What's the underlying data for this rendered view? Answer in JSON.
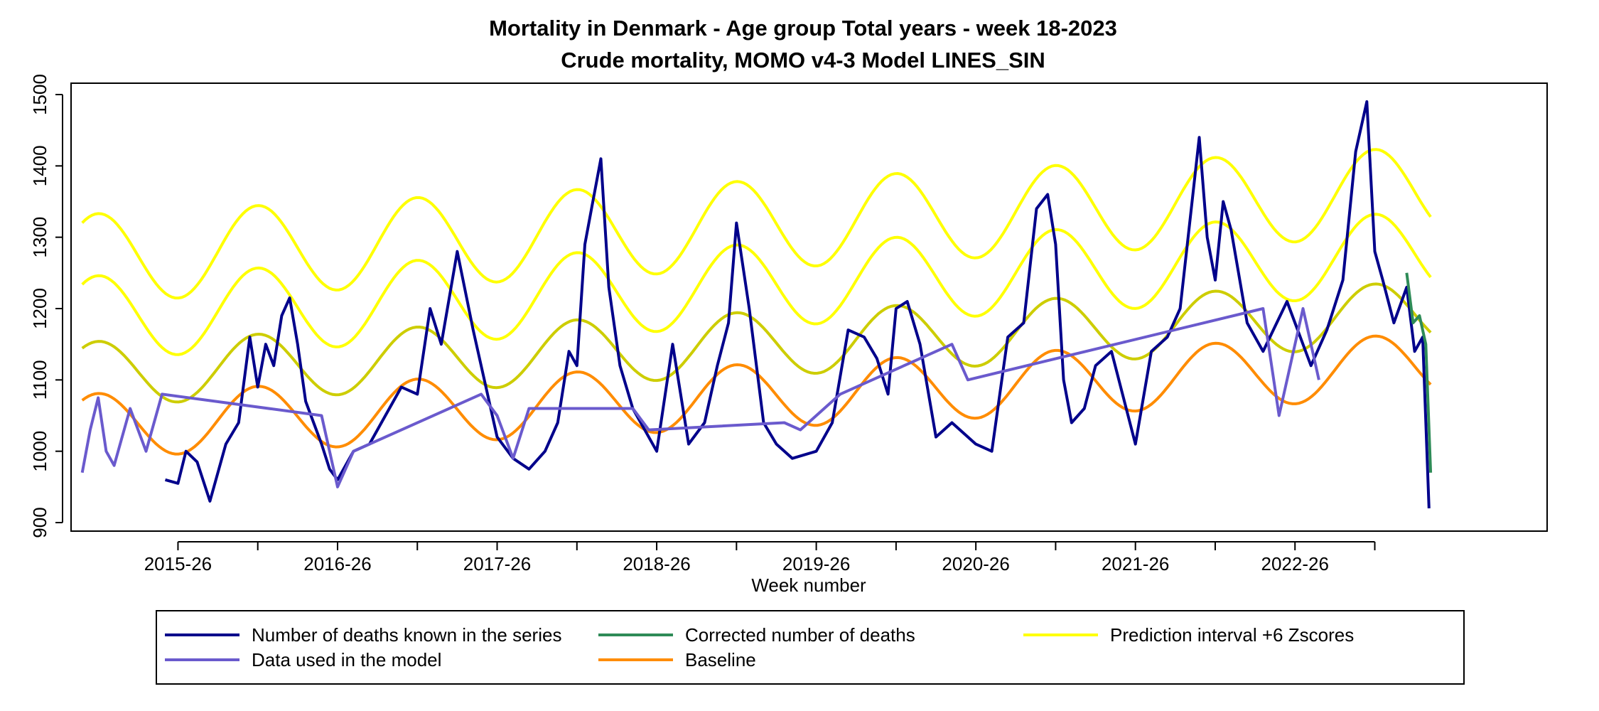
{
  "chart_data": {
    "type": "line",
    "title": "Mortality in Denmark - Age group Total years - week 18-2023",
    "subtitle": "Crude mortality, MOMO v4-3 Model LINES_SIN",
    "xlabel": "Week number",
    "ylabel": "",
    "ylim": [
      900,
      1500
    ],
    "yticks": [
      900,
      1000,
      1100,
      1200,
      1300,
      1400,
      1500
    ],
    "x_range": [
      2014.83,
      2024.08
    ],
    "x_tick_positions": [
      2015.5,
      2016.0,
      2016.5,
      2017.0,
      2017.5,
      2018.0,
      2018.5,
      2019.0,
      2019.5,
      2020.0,
      2020.5,
      2021.0,
      2021.5,
      2022.0,
      2022.5,
      2023.0
    ],
    "x_tick_labels": [
      "2015-26",
      "2016-26",
      "2017-26",
      "2018-26",
      "2019-26",
      "2020-26",
      "2021-26",
      "2022-26"
    ],
    "x_label_positions": [
      2015.5,
      2016.5,
      2017.5,
      2018.5,
      2019.5,
      2020.5,
      2021.5,
      2022.5
    ],
    "grid": false,
    "legend_position": "bottom",
    "legend": [
      {
        "label": "Number of deaths known in the series",
        "color": "#00008B"
      },
      {
        "label": "Corrected number of deaths",
        "color": "#2E8B57"
      },
      {
        "label": "Prediction interval +6 Zscores",
        "color": "#FFFF00"
      },
      {
        "label": "Data used in the model",
        "color": "#6A5ACD"
      },
      {
        "label": "Baseline",
        "color": "#FF8C00"
      }
    ],
    "series": [
      {
        "name": "Number of deaths known in the series",
        "color": "#00008B",
        "x": [
          2015.42,
          2015.5,
          2015.55,
          2015.62,
          2015.7,
          2015.8,
          2015.88,
          2015.95,
          2016.0,
          2016.05,
          2016.1,
          2016.15,
          2016.2,
          2016.25,
          2016.3,
          2016.35,
          2016.4,
          2016.45,
          2016.5,
          2016.6,
          2016.7,
          2016.8,
          2016.9,
          2017.0,
          2017.08,
          2017.15,
          2017.25,
          2017.35,
          2017.5,
          2017.6,
          2017.7,
          2017.8,
          2017.88,
          2017.95,
          2018.0,
          2018.05,
          2018.1,
          2018.15,
          2018.2,
          2018.27,
          2018.35,
          2018.5,
          2018.6,
          2018.7,
          2018.8,
          2018.88,
          2018.95,
          2019.0,
          2019.08,
          2019.17,
          2019.25,
          2019.35,
          2019.5,
          2019.6,
          2019.7,
          2019.8,
          2019.88,
          2019.95,
          2020.0,
          2020.07,
          2020.15,
          2020.25,
          2020.35,
          2020.5,
          2020.6,
          2020.7,
          2020.8,
          2020.88,
          2020.95,
          2021.0,
          2021.05,
          2021.1,
          2021.18,
          2021.25,
          2021.35,
          2021.5,
          2021.6,
          2021.7,
          2021.78,
          2021.85,
          2021.9,
          2021.95,
          2022.0,
          2022.05,
          2022.1,
          2022.2,
          2022.3,
          2022.45,
          2022.6,
          2022.7,
          2022.8,
          2022.88,
          2022.95,
          2023.0,
          2023.05,
          2023.12,
          2023.2,
          2023.25,
          2023.3,
          2023.34
        ],
        "values": [
          960,
          955,
          1000,
          985,
          930,
          1010,
          1040,
          1160,
          1090,
          1150,
          1120,
          1190,
          1215,
          1150,
          1070,
          1040,
          1010,
          975,
          960,
          1000,
          1010,
          1050,
          1090,
          1080,
          1200,
          1150,
          1280,
          1170,
          1020,
          990,
          975,
          1000,
          1040,
          1140,
          1120,
          1290,
          1350,
          1410,
          1230,
          1120,
          1060,
          1000,
          1150,
          1010,
          1040,
          1120,
          1180,
          1320,
          1200,
          1040,
          1010,
          990,
          1000,
          1040,
          1170,
          1160,
          1130,
          1080,
          1200,
          1210,
          1150,
          1020,
          1040,
          1010,
          1000,
          1160,
          1180,
          1340,
          1360,
          1290,
          1100,
          1040,
          1060,
          1120,
          1140,
          1010,
          1140,
          1160,
          1200,
          1340,
          1440,
          1300,
          1240,
          1350,
          1310,
          1180,
          1140,
          1210,
          1120,
          1170,
          1240,
          1420,
          1490,
          1280,
          1240,
          1180,
          1230,
          1140,
          1160,
          920
        ]
      },
      {
        "name": "Data used in the model",
        "color": "#6A5ACD",
        "x": [
          2014.9,
          2014.95,
          2015.0,
          2015.05,
          2015.1,
          2015.2,
          2015.3,
          2015.4,
          2016.4,
          2016.5,
          2016.6,
          2017.4,
          2017.5,
          2017.6,
          2017.7,
          2018.35,
          2018.45,
          2019.3,
          2019.4,
          2019.55,
          2019.65,
          2020.35,
          2020.45,
          2022.3,
          2022.4,
          2022.55,
          2022.65
        ],
        "values": [
          970,
          1030,
          1075,
          1000,
          980,
          1060,
          1000,
          1080,
          1050,
          950,
          1000,
          1080,
          1050,
          990,
          1060,
          1060,
          1030,
          1040,
          1030,
          1060,
          1080,
          1150,
          1100,
          1200,
          1050,
          1200,
          1100
        ]
      },
      {
        "name": "Corrected number of deaths",
        "color": "#2E8B57",
        "x": [
          2023.2,
          2023.24,
          2023.28,
          2023.32,
          2023.35
        ],
        "values": [
          1250,
          1180,
          1190,
          1150,
          970
        ]
      }
    ],
    "curves": [
      {
        "name": "Baseline",
        "color": "#FF8C00",
        "mean_start": 1035,
        "mean_end": 1120,
        "amplitude": 45,
        "peak_phase": 0.0
      },
      {
        "name": "Prediction interval +2 Zscores",
        "color": "#CDCD00",
        "mean_start": 1108,
        "mean_end": 1193,
        "amplitude": 45,
        "peak_phase": 0.0
      },
      {
        "name": "Prediction interval +4 Zscores",
        "color": "#FFFF00",
        "mean_start": 1187,
        "mean_end": 1278,
        "amplitude": 58,
        "peak_phase": 0.0
      },
      {
        "name": "Prediction interval +6 Zscores",
        "color": "#FFFF00",
        "mean_start": 1270,
        "mean_end": 1365,
        "amplitude": 62,
        "peak_phase": 0.0
      }
    ],
    "curve_x_range": [
      2014.9,
      2023.35
    ]
  }
}
